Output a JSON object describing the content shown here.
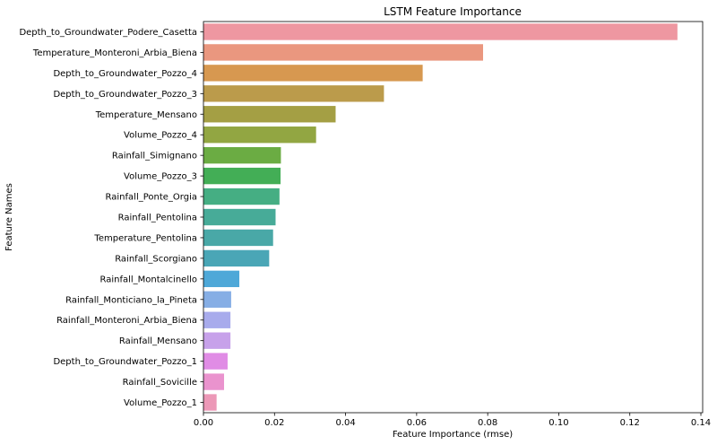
{
  "chart_data": {
    "type": "bar",
    "orientation": "horizontal",
    "title": "LSTM Feature Importance",
    "xlabel": "Feature Importance (rmse)",
    "ylabel": "Feature Names",
    "xlim": [
      0,
      0.1405
    ],
    "xticks": [
      "0.00",
      "0.02",
      "0.04",
      "0.06",
      "0.08",
      "0.10",
      "0.12",
      "0.14"
    ],
    "xtick_values": [
      0,
      0.02,
      0.04,
      0.06,
      0.08,
      0.1,
      0.12,
      0.14
    ],
    "grid": false,
    "categories": [
      "Depth_to_Groundwater_Podere_Casetta",
      "Temperature_Monteroni_Arbia_Biena",
      "Depth_to_Groundwater_Pozzo_4",
      "Depth_to_Groundwater_Pozzo_3",
      "Temperature_Mensano",
      "Volume_Pozzo_4",
      "Rainfall_Simignano",
      "Volume_Pozzo_3",
      "Rainfall_Ponte_Orgia",
      "Rainfall_Pentolina",
      "Temperature_Pentolina",
      "Rainfall_Scorgiano",
      "Rainfall_Montalcinello",
      "Rainfall_Monticiano_la_Pineta",
      "Rainfall_Monteroni_Arbia_Biena",
      "Rainfall_Mensano",
      "Depth_to_Groundwater_Pozzo_1",
      "Rainfall_Sovicille",
      "Volume_Pozzo_1"
    ],
    "values": [
      0.1334,
      0.0787,
      0.0617,
      0.0508,
      0.0372,
      0.0317,
      0.0218,
      0.0217,
      0.0214,
      0.0203,
      0.0196,
      0.0185,
      0.0101,
      0.0078,
      0.0076,
      0.0076,
      0.0068,
      0.0058,
      0.0037
    ],
    "colors": [
      "#ee97a1",
      "#ea977f",
      "#d79850",
      "#bb9b4b",
      "#a49f44",
      "#92a642",
      "#6bac43",
      "#43ae56",
      "#45ae83",
      "#47ab98",
      "#49a8a7",
      "#4aa6b6",
      "#4ea8d8",
      "#86aee5",
      "#a8abec",
      "#c7a1ea",
      "#e08ce5",
      "#ea93ce",
      "#ec98b7"
    ]
  }
}
